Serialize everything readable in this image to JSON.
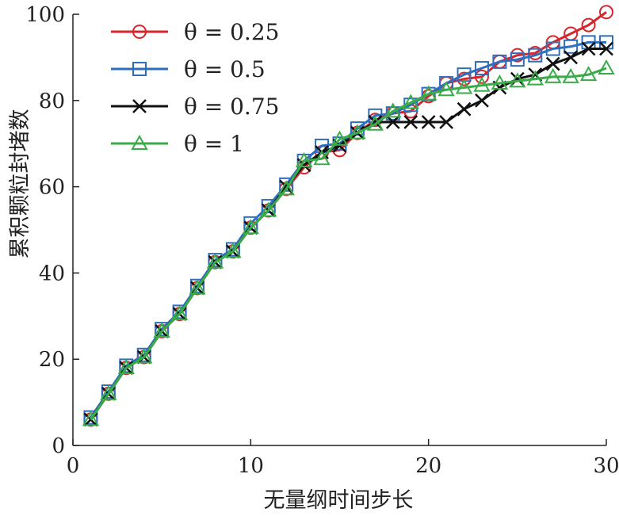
{
  "chart_data": {
    "type": "line",
    "xlabel": "无量纲时间步长",
    "ylabel": "累积颗粒封堵数",
    "xlim": [
      0,
      30
    ],
    "ylim": [
      0,
      100
    ],
    "xticks": [
      "0",
      "10",
      "20",
      "30"
    ],
    "yticks": [
      "0",
      "20",
      "40",
      "60",
      "80",
      "100"
    ],
    "grid": false,
    "legend_position": "top-left",
    "x": [
      1,
      2,
      3,
      4,
      5,
      6,
      7,
      8,
      9,
      10,
      11,
      12,
      13,
      14,
      15,
      16,
      17,
      18,
      19,
      20,
      21,
      22,
      23,
      24,
      25,
      26,
      27,
      28,
      29,
      30
    ],
    "series": [
      {
        "name": "θ = 0.25",
        "color": "#d7262b",
        "marker": "circle",
        "values": [
          6,
          12,
          18,
          20.5,
          26.5,
          30.5,
          36.5,
          42.5,
          45,
          50.5,
          54.5,
          59.5,
          64.5,
          68,
          68.5,
          72.5,
          75.5,
          77,
          77.5,
          81,
          84,
          85,
          85.5,
          89,
          90.5,
          91,
          93.5,
          95.5,
          97.5,
          100.5
        ]
      },
      {
        "name": "θ = 0.5",
        "color": "#2e6ebd",
        "marker": "square",
        "values": [
          6.5,
          12.5,
          18.5,
          21,
          27,
          31,
          37,
          43,
          45.5,
          51.5,
          55.5,
          60.5,
          66,
          69.5,
          70,
          73.5,
          76.5,
          77,
          79,
          81.5,
          84,
          86,
          87.5,
          89,
          89.5,
          90.5,
          92,
          92.5,
          93.5,
          93.5
        ]
      },
      {
        "name": "θ = 0.75",
        "color": "#111111",
        "marker": "x",
        "values": [
          6,
          12,
          18,
          20.5,
          26.5,
          30.5,
          36.5,
          42.5,
          45,
          50.5,
          54.5,
          60,
          65,
          68,
          69.5,
          72.5,
          75,
          75,
          75,
          75,
          75,
          78,
          80,
          83,
          85,
          86,
          88.5,
          90,
          92,
          92
        ]
      },
      {
        "name": "θ = 1",
        "color": "#3aab49",
        "marker": "triangle",
        "values": [
          6,
          12,
          18,
          20.5,
          26.5,
          30.5,
          36.5,
          42.5,
          45,
          50.5,
          54.5,
          59.5,
          66,
          66.5,
          71,
          72.5,
          74.5,
          77.5,
          79.5,
          81.5,
          82.5,
          83,
          83.5,
          84,
          84.5,
          85,
          85.5,
          85.5,
          86,
          87.5
        ]
      }
    ]
  }
}
